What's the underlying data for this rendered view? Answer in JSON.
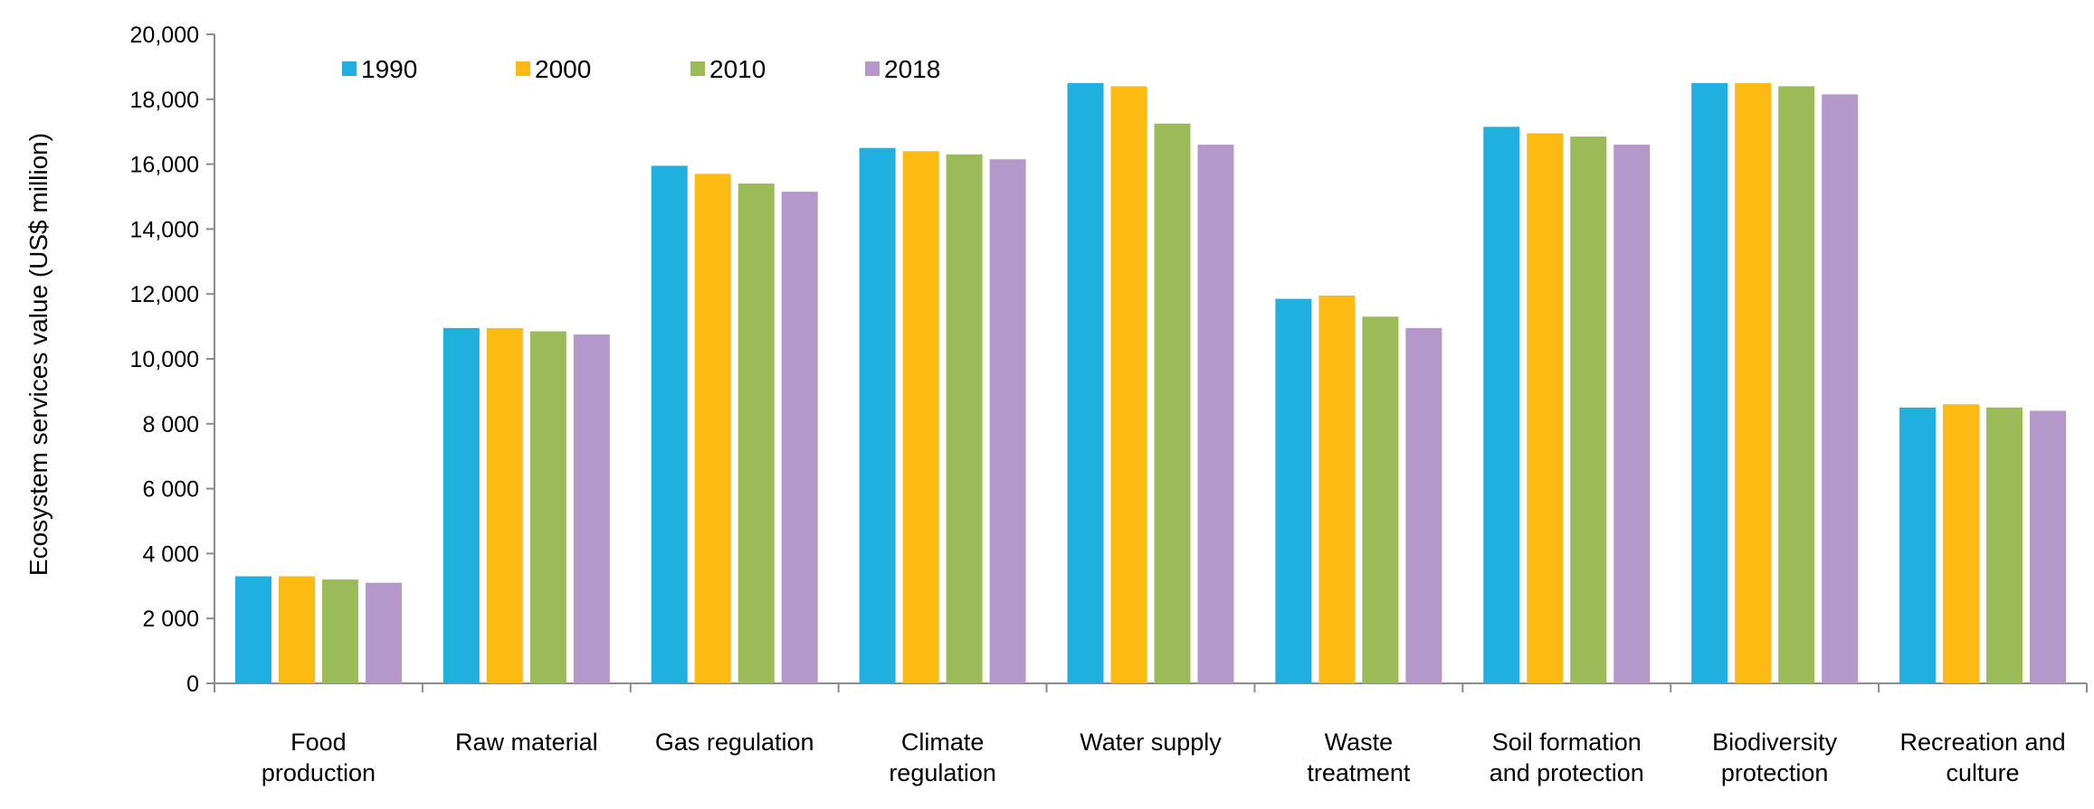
{
  "chart_data": {
    "type": "bar",
    "title": "",
    "xlabel": "",
    "ylabel": "Ecosystem services value (US$ million)",
    "ylim": [
      0,
      20000
    ],
    "yticks": [
      0,
      2000,
      4000,
      6000,
      8000,
      10000,
      12000,
      14000,
      16000,
      18000,
      20000
    ],
    "ytick_labels": [
      "0",
      "2 000",
      "4 000",
      "6 000",
      "8 000",
      "10,000",
      "12,000",
      "14,000",
      "16,000",
      "18,000",
      "20,000"
    ],
    "grid": false,
    "legend_position": "top-left",
    "categories": [
      [
        "Food",
        "production"
      ],
      [
        "Raw material"
      ],
      [
        "Gas regulation"
      ],
      [
        "Climate",
        "regulation"
      ],
      [
        "Water supply"
      ],
      [
        "Waste",
        "treatment"
      ],
      [
        "Soil formation",
        "and protection"
      ],
      [
        "Biodiversity",
        "protection"
      ],
      [
        "Recreation and",
        "culture"
      ]
    ],
    "series": [
      {
        "name": "1990",
        "color": "#1FB0E0",
        "values": [
          3300,
          10950,
          15950,
          16500,
          18500,
          11850,
          17150,
          18500,
          8500
        ]
      },
      {
        "name": "2000",
        "color": "#FDBA12",
        "values": [
          3300,
          10950,
          15700,
          16400,
          18400,
          11950,
          16950,
          18500,
          8600
        ]
      },
      {
        "name": "2010",
        "color": "#9BBB59",
        "values": [
          3200,
          10850,
          15400,
          16300,
          17250,
          11300,
          16850,
          18400,
          8500
        ]
      },
      {
        "name": "2018",
        "color": "#B498C9",
        "values": [
          3100,
          10750,
          15150,
          16150,
          16600,
          10950,
          16600,
          18150,
          8400
        ]
      }
    ]
  }
}
